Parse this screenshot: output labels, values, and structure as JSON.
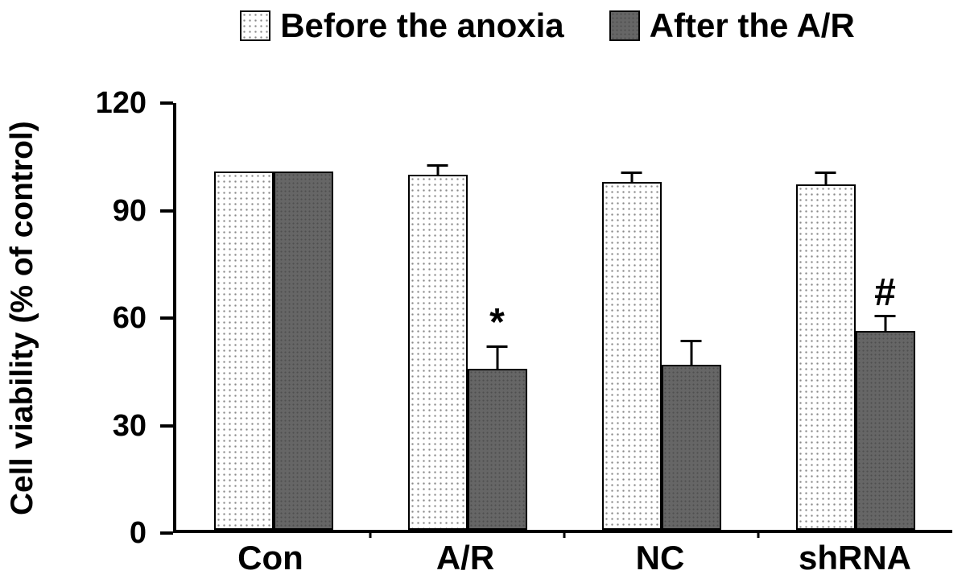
{
  "legend": {
    "items": [
      {
        "label": "Before the anoxia",
        "swatch": "dots"
      },
      {
        "label": "After the A/R",
        "swatch": "dark"
      }
    ]
  },
  "chart_data": {
    "type": "bar",
    "title": "",
    "xlabel": "",
    "ylabel": "Cell viability (% of control)",
    "ylim": [
      0,
      120
    ],
    "yticks": [
      0,
      30,
      60,
      90,
      120
    ],
    "categories": [
      "Con",
      "A/R",
      "NC",
      "shRNA"
    ],
    "series": [
      {
        "name": "Before the anoxia",
        "values": [
          100,
          99,
          97,
          96.5
        ],
        "errors": [
          0,
          3.5,
          3.5,
          4
        ]
      },
      {
        "name": "After the A/R",
        "values": [
          100,
          45,
          46,
          55.5
        ],
        "errors": [
          0,
          7,
          7.5,
          5
        ]
      }
    ],
    "annotations": [
      {
        "category": "A/R",
        "series": "After the A/R",
        "text": "*"
      },
      {
        "category": "shRNA",
        "series": "After the A/R",
        "text": "#"
      }
    ],
    "legend_position": "top",
    "grid": false
  },
  "colors": {
    "axis": "#000000",
    "before_fill": "#ffffff",
    "dot_color": "#8a8a8a",
    "after_fill": "#666666"
  }
}
